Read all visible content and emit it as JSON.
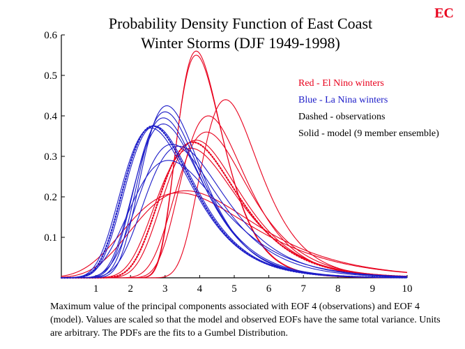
{
  "header": {
    "title_line1": "Probability Density Function of East Coast",
    "title_line2": "Winter Storms (DJF 1949-1998)",
    "corner_label": "EC"
  },
  "legend": {
    "red": "Red - El Nino winters",
    "blue": "Blue - La Nina winters",
    "dashed": "Dashed - observations",
    "solid": "Solid - model  (9 member ensemble)"
  },
  "caption": "Maximum value of the principal components  associated with EOF 4 (observations) and EOF 4 (model).  Values are scaled so that the model and observed EOFs have the same total variance.  Units are arbitrary.  The PDFs are the fits to a Gumbel Distribution.",
  "colors": {
    "red": "#e8001c",
    "blue": "#1c1cc8"
  },
  "chart_data": {
    "type": "line",
    "title": "Probability Density Function of East Coast Winter Storms (DJF 1949-1998)",
    "xlim": [
      0,
      10
    ],
    "ylim": [
      0,
      0.6
    ],
    "xticks": [
      1,
      2,
      3,
      4,
      5,
      6,
      7,
      8,
      9,
      10
    ],
    "yticks": [
      0.1,
      0.2,
      0.3,
      0.4,
      0.5,
      0.6
    ],
    "ytick_labels": [
      "0.1",
      "0.2",
      "0.3",
      "0.4",
      "0.5",
      "0.6"
    ],
    "distribution": "Gumbel",
    "series": [
      {
        "name": "El Nino model 1",
        "group": "red",
        "style": "solid",
        "mode": 3.9,
        "peak": 0.56
      },
      {
        "name": "El Nino model 2",
        "group": "red",
        "style": "solid",
        "mode": 3.9,
        "peak": 0.55
      },
      {
        "name": "El Nino model 3",
        "group": "red",
        "style": "solid",
        "mode": 4.75,
        "peak": 0.44
      },
      {
        "name": "El Nino model 4",
        "group": "red",
        "style": "solid",
        "mode": 4.25,
        "peak": 0.4
      },
      {
        "name": "El Nino model 5",
        "group": "red",
        "style": "solid",
        "mode": 4.2,
        "peak": 0.36
      },
      {
        "name": "El Nino model 6",
        "group": "red",
        "style": "solid",
        "mode": 3.9,
        "peak": 0.34
      },
      {
        "name": "El Nino model 7",
        "group": "red",
        "style": "solid",
        "mode": 3.75,
        "peak": 0.32
      },
      {
        "name": "El Nino model 8",
        "group": "red",
        "style": "solid",
        "mode": 3.6,
        "peak": 0.215
      },
      {
        "name": "El Nino model 9",
        "group": "red",
        "style": "solid",
        "mode": 3.4,
        "peak": 0.21
      },
      {
        "name": "El Nino observations",
        "group": "red",
        "style": "dashed",
        "mode": 3.8,
        "peak": 0.335
      },
      {
        "name": "La Nina model 1",
        "group": "blue",
        "style": "solid",
        "mode": 3.05,
        "peak": 0.425
      },
      {
        "name": "La Nina model 2",
        "group": "blue",
        "style": "solid",
        "mode": 3.0,
        "peak": 0.41
      },
      {
        "name": "La Nina model 3",
        "group": "blue",
        "style": "solid",
        "mode": 2.95,
        "peak": 0.395
      },
      {
        "name": "La Nina model 4",
        "group": "blue",
        "style": "solid",
        "mode": 2.95,
        "peak": 0.38
      },
      {
        "name": "La Nina model 5",
        "group": "blue",
        "style": "solid",
        "mode": 2.7,
        "peak": 0.375
      },
      {
        "name": "La Nina model 6",
        "group": "blue",
        "style": "solid",
        "mode": 3.2,
        "peak": 0.33
      },
      {
        "name": "La Nina model 7",
        "group": "blue",
        "style": "solid",
        "mode": 3.4,
        "peak": 0.325
      },
      {
        "name": "La Nina model 8",
        "group": "blue",
        "style": "solid",
        "mode": 3.1,
        "peak": 0.29
      },
      {
        "name": "La Nina model 9",
        "group": "blue",
        "style": "solid",
        "mode": 2.6,
        "peak": 0.37
      },
      {
        "name": "La Nina observations",
        "group": "blue",
        "style": "dashed",
        "mode": 2.65,
        "peak": 0.375
      }
    ]
  }
}
